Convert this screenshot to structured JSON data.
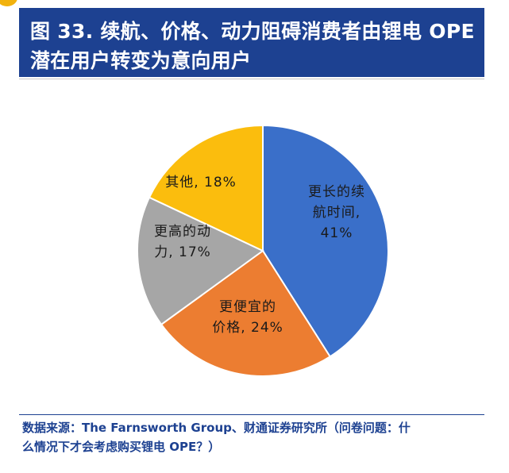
{
  "header": {
    "title_line1": "图 33. 续航、价格、动力阻碍消费者由锂电 OPE",
    "title_line2": "潜在用户转变为意向用户"
  },
  "chart_data": {
    "type": "pie",
    "title": "",
    "slices": [
      {
        "label_lines": [
          "更长的续",
          "航时间,",
          "41%"
        ],
        "value": 41,
        "color": "#3a6fc9"
      },
      {
        "label_lines": [
          "更便宜的",
          "价格, 24%"
        ],
        "value": 24,
        "color": "#ec7d31"
      },
      {
        "label_lines": [
          "更高的动",
          "力, 17%"
        ],
        "value": 17,
        "color": "#a6a6a6"
      },
      {
        "label_lines": [
          "其他, 18%"
        ],
        "value": 18,
        "color": "#fbbd0d"
      }
    ],
    "start": "12 o'clock",
    "direction": "clockwise",
    "slice_border_color": "#ffffff"
  },
  "footer": {
    "source_line1": "数据来源：The Farnsworth Group、财通证券研究所（问卷问题：什",
    "source_line2": "么情况下才会考虑购买锂电 OPE？）"
  },
  "colors": {
    "title_bar": "#1d4191",
    "badge": "#f2b20d"
  }
}
